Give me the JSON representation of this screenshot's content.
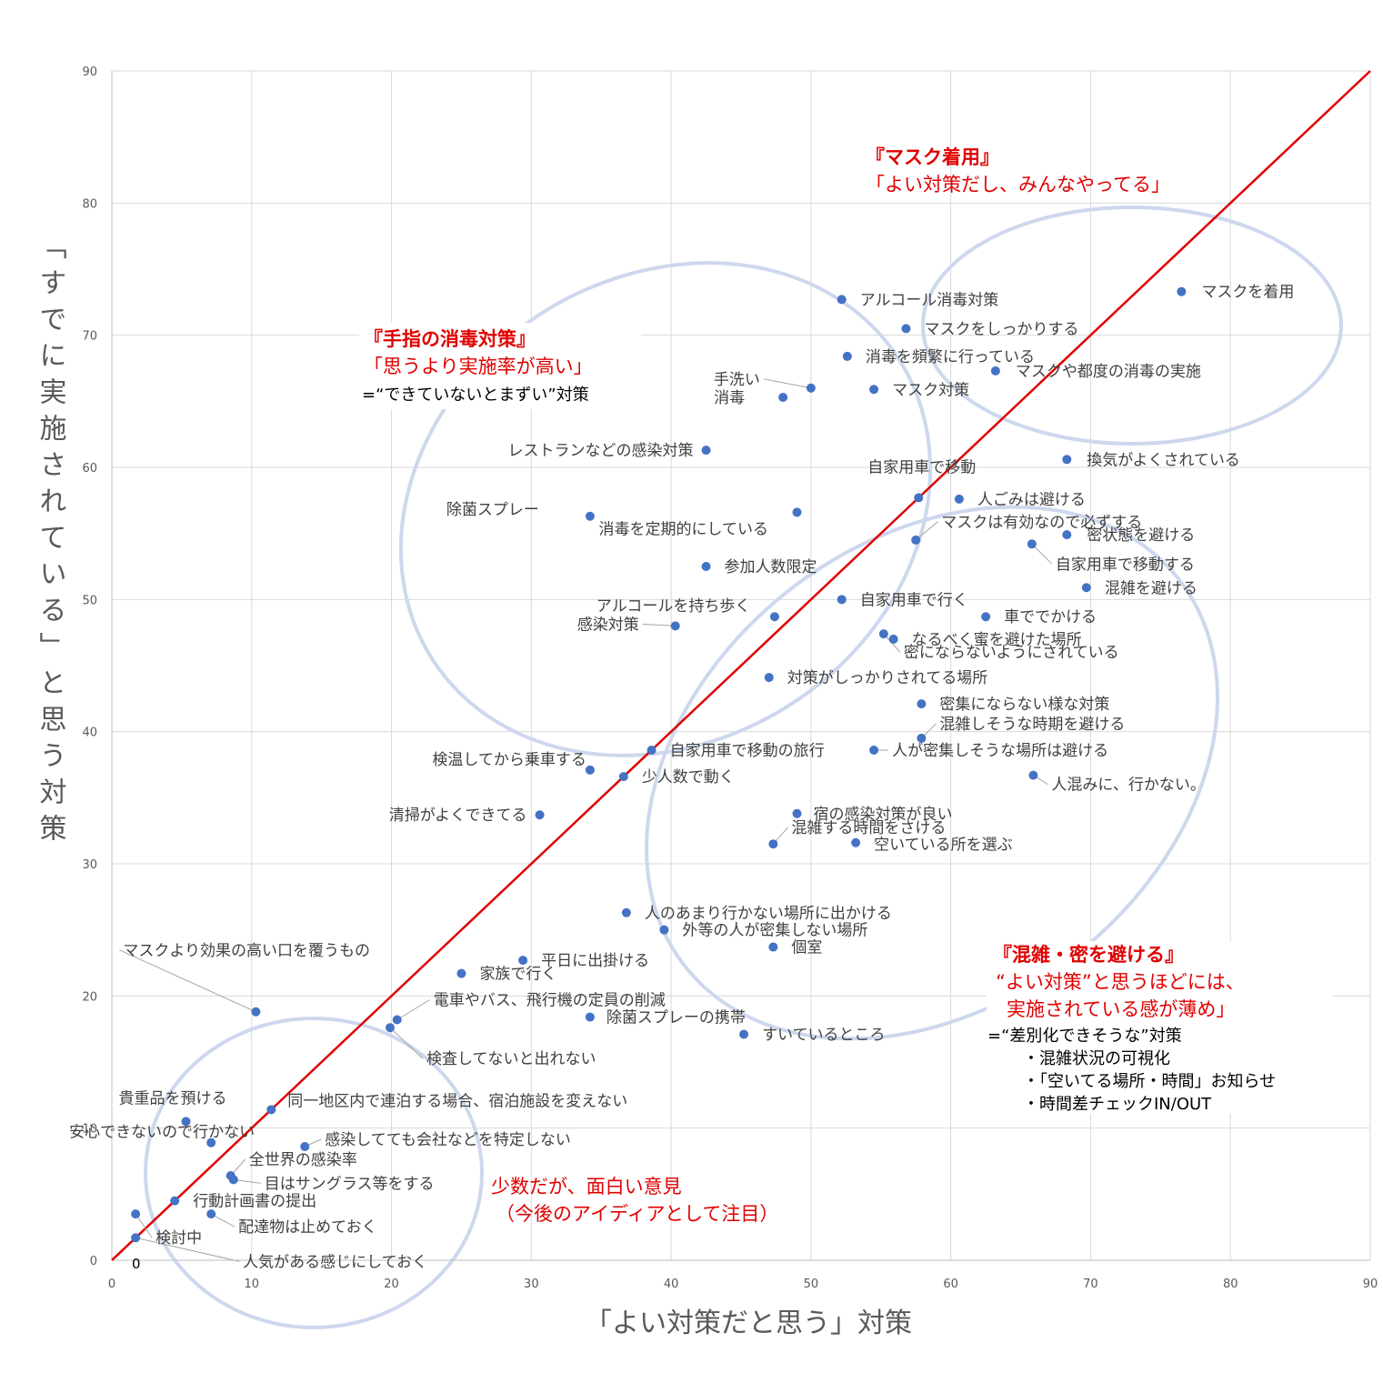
{
  "chart_data": {
    "type": "scatter",
    "xlabel": "「よい対策だと思う」対策",
    "ylabel": "「すでに実施されている」と思う対策",
    "xlim": [
      0,
      90
    ],
    "ylim": [
      0,
      90
    ],
    "x_ticks": [
      "0",
      "10",
      "20",
      "30",
      "40",
      "50",
      "60",
      "70",
      "80",
      "90"
    ],
    "y_ticks": [
      "0",
      "10",
      "20",
      "30",
      "40",
      "50",
      "60",
      "70",
      "80",
      "90"
    ],
    "origin_label": "0",
    "grid": true,
    "reference_line": {
      "from": [
        0,
        0
      ],
      "to": [
        90,
        90
      ],
      "color": "#e00000"
    },
    "point_color": "#4472c4",
    "points": [
      {
        "x": 76.5,
        "y": 73.3,
        "label": "マスクを着用"
      },
      {
        "x": 52.2,
        "y": 72.7,
        "label": "アルコール消毒対策"
      },
      {
        "x": 56.8,
        "y": 70.5,
        "label": "マスクをしっかりする"
      },
      {
        "x": 52.6,
        "y": 68.4,
        "label": "消毒を頻繁に行っている"
      },
      {
        "x": 63.2,
        "y": 67.3,
        "label": "マスクや都度の消毒の実施"
      },
      {
        "x": 50.0,
        "y": 66.0,
        "label": "手洗い"
      },
      {
        "x": 48.0,
        "y": 65.3,
        "label": "消毒"
      },
      {
        "x": 54.5,
        "y": 65.9,
        "label": "マスク対策"
      },
      {
        "x": 42.5,
        "y": 61.3,
        "label": "レストランなどの感染対策"
      },
      {
        "x": 68.3,
        "y": 60.6,
        "label": "換気がよくされている"
      },
      {
        "x": 57.7,
        "y": 57.7,
        "label": "自家用車で移動"
      },
      {
        "x": 60.6,
        "y": 57.6,
        "label": "人ごみは避ける"
      },
      {
        "x": 34.2,
        "y": 56.3,
        "label": "除菌スプレー"
      },
      {
        "x": 49.0,
        "y": 56.6,
        "label": "消毒を定期的にしている"
      },
      {
        "x": 57.5,
        "y": 54.5,
        "label": "マスクは有効なので必ずする"
      },
      {
        "x": 68.3,
        "y": 54.9,
        "label": "密状態を避ける"
      },
      {
        "x": 65.8,
        "y": 54.2,
        "label": "自家用車で移動する"
      },
      {
        "x": 42.5,
        "y": 52.5,
        "label": "参加人数限定"
      },
      {
        "x": 69.7,
        "y": 50.9,
        "label": "混雑を避ける"
      },
      {
        "x": 52.2,
        "y": 50.0,
        "label": "自家用車で行く"
      },
      {
        "x": 47.4,
        "y": 48.7,
        "label": "アルコールを持ち歩く"
      },
      {
        "x": 62.5,
        "y": 48.7,
        "label": "車ででかける"
      },
      {
        "x": 40.3,
        "y": 48.0,
        "label": "感染対策"
      },
      {
        "x": 55.9,
        "y": 47.0,
        "label": "なるべく蜜を避けた場所"
      },
      {
        "x": 55.2,
        "y": 47.4,
        "label": "密にならないようにされている"
      },
      {
        "x": 47.0,
        "y": 44.1,
        "label": "対策がしっかりされてる場所"
      },
      {
        "x": 57.9,
        "y": 42.1,
        "label": "密集にならない様な対策"
      },
      {
        "x": 57.9,
        "y": 39.5,
        "label": "混雑しそうな時期を避ける"
      },
      {
        "x": 38.6,
        "y": 38.6,
        "label": "自家用車で移動の旅行"
      },
      {
        "x": 54.5,
        "y": 38.6,
        "label": "人が密集しそうな場所は避ける"
      },
      {
        "x": 34.2,
        "y": 37.1,
        "label": "検温してから乗車する"
      },
      {
        "x": 36.6,
        "y": 36.6,
        "label": "少人数で動く"
      },
      {
        "x": 65.9,
        "y": 36.7,
        "label": "人混みに、行かない。"
      },
      {
        "x": 30.6,
        "y": 33.7,
        "label": "清掃がよくできてる"
      },
      {
        "x": 49.0,
        "y": 33.8,
        "label": "宿の感染対策が良い"
      },
      {
        "x": 47.3,
        "y": 31.5,
        "label": "混雑する時間をさける"
      },
      {
        "x": 53.2,
        "y": 31.6,
        "label": "空いている所を選ぶ"
      },
      {
        "x": 36.8,
        "y": 26.3,
        "label": "人のあまり行かない場所に出かける"
      },
      {
        "x": 39.5,
        "y": 25.0,
        "label": "外等の人が密集しない場所"
      },
      {
        "x": 47.3,
        "y": 23.7,
        "label": "個室"
      },
      {
        "x": 29.4,
        "y": 22.7,
        "label": "平日に出掛ける"
      },
      {
        "x": 25.0,
        "y": 21.7,
        "label": "家族で行く"
      },
      {
        "x": 10.3,
        "y": 18.8,
        "label": "マスクより効果の高い口を覆うもの"
      },
      {
        "x": 20.4,
        "y": 18.2,
        "label": "電車やバス、飛行機の定員の削減"
      },
      {
        "x": 34.2,
        "y": 18.4,
        "label": "除菌スプレーの携帯"
      },
      {
        "x": 19.9,
        "y": 17.6,
        "label": "検査してないと出れない"
      },
      {
        "x": 45.2,
        "y": 17.1,
        "label": "すいているところ"
      },
      {
        "x": 5.3,
        "y": 10.5,
        "label": "貴重品を預ける"
      },
      {
        "x": 11.4,
        "y": 11.4,
        "label": "同一地区内で連泊する場合、宿泊施設を変えない"
      },
      {
        "x": 7.1,
        "y": 8.9,
        "label": "安心できないので行かない"
      },
      {
        "x": 13.8,
        "y": 8.6,
        "label": "感染してても会社などを特定しない"
      },
      {
        "x": 8.5,
        "y": 6.4,
        "label": "全世界の感染率"
      },
      {
        "x": 8.7,
        "y": 6.1,
        "label": "目はサングラス等をする"
      },
      {
        "x": 4.5,
        "y": 4.5,
        "label": "行動計画書の提出"
      },
      {
        "x": 1.7,
        "y": 3.5,
        "label": "検討中"
      },
      {
        "x": 7.1,
        "y": 3.5,
        "label": "配達物は止めておく"
      },
      {
        "x": 1.7,
        "y": 1.7,
        "label": "人気がある感じにしておく"
      }
    ]
  },
  "annotations": {
    "mask": {
      "title": "『マスク着用』",
      "line1": "「よい対策だし、みんなやってる」"
    },
    "hand": {
      "title": "『手指の消毒対策』",
      "line1": "「思うより実施率が高い」",
      "line2": "=“できていないとまずい”対策"
    },
    "crowd": {
      "title": "『混雑・密を避ける』",
      "line1": "“よい対策”と思うほどには、",
      "line2": "実施されている感が薄め」",
      "line3": "=“差別化できそうな”対策",
      "bullet1": "・混雑状況の可視化",
      "bullet2": "・「空いてる場所・時間」お知らせ",
      "bullet3": "・時間差チェックIN/OUT"
    },
    "minority": {
      "line1": "少数だが、面白い意見",
      "line2": "（今後のアイディアとして注目）"
    }
  }
}
